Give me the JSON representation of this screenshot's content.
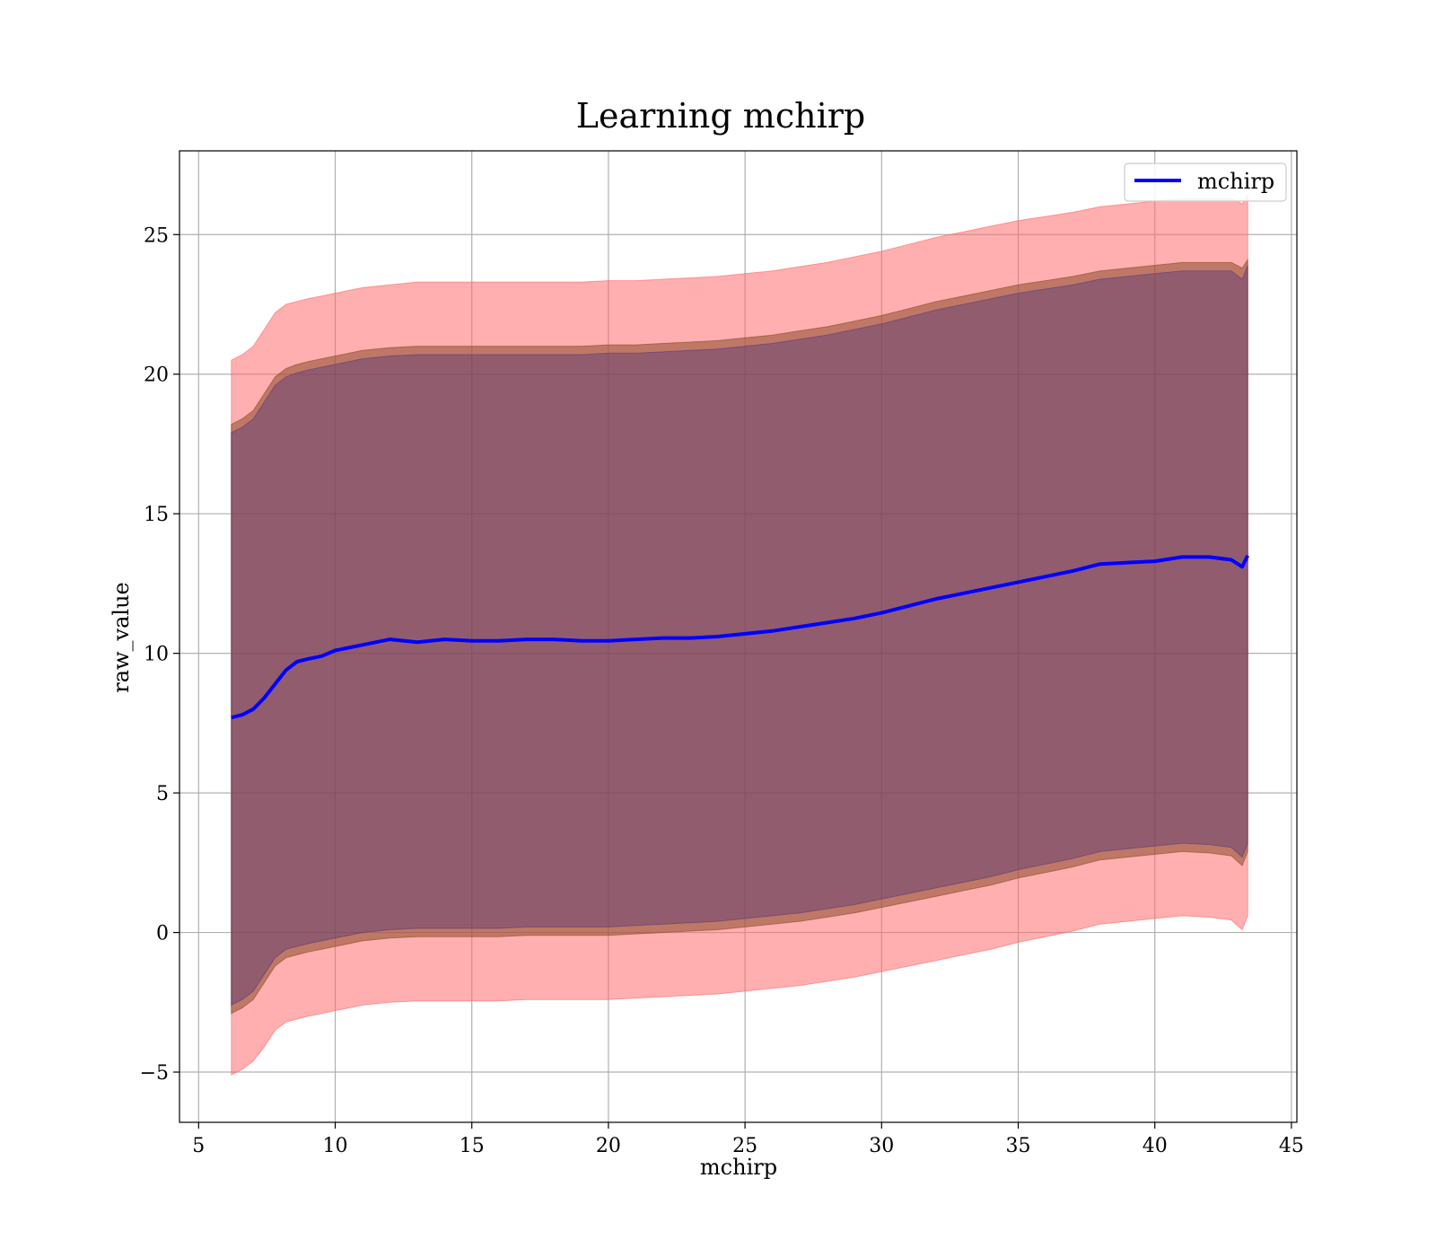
{
  "chart_data": {
    "type": "area",
    "title": "Learning mchirp",
    "xlabel": "mchirp",
    "ylabel": "raw_value",
    "xlim": [
      4.3,
      45.2
    ],
    "ylim": [
      -6.8,
      28.0
    ],
    "xticks": [
      5,
      10,
      15,
      20,
      25,
      30,
      35,
      40,
      45
    ],
    "xtick_labels": [
      "5",
      "10",
      "15",
      "20",
      "25",
      "30",
      "35",
      "40",
      "45"
    ],
    "yticks": [
      -5,
      0,
      5,
      10,
      15,
      20,
      25
    ],
    "ytick_labels": [
      "−5",
      "0",
      "5",
      "10",
      "15",
      "20",
      "25"
    ],
    "grid": true,
    "legend_position": "top-right",
    "colors": {
      "line": "#0000ff",
      "outer_band": "#ff6666",
      "middle_band": "#8a4a2a",
      "inner_band": "#5a3a7a"
    },
    "x": [
      6.2,
      6.6,
      7.0,
      7.4,
      7.8,
      8.2,
      8.6,
      9.0,
      9.5,
      10.0,
      11.0,
      12.0,
      13.0,
      14.0,
      15.0,
      16.0,
      17.0,
      18.0,
      19.0,
      20.0,
      21.0,
      22.0,
      23.0,
      24.0,
      25.0,
      26.0,
      27.0,
      28.0,
      29.0,
      30.0,
      31.0,
      32.0,
      33.0,
      34.0,
      35.0,
      36.0,
      37.0,
      38.0,
      39.0,
      40.0,
      41.0,
      42.0,
      42.8,
      43.2,
      43.4
    ],
    "series": [
      {
        "name": "mchirp",
        "kind": "line",
        "values": [
          7.7,
          7.8,
          8.0,
          8.4,
          8.9,
          9.4,
          9.7,
          9.8,
          9.9,
          10.1,
          10.3,
          10.5,
          10.4,
          10.5,
          10.45,
          10.45,
          10.5,
          10.5,
          10.45,
          10.45,
          10.5,
          10.55,
          10.55,
          10.6,
          10.7,
          10.8,
          10.95,
          11.1,
          11.25,
          11.45,
          11.7,
          11.95,
          12.15,
          12.35,
          12.55,
          12.75,
          12.95,
          13.2,
          13.25,
          13.3,
          13.45,
          13.45,
          13.35,
          13.1,
          13.5
        ]
      },
      {
        "kind": "band",
        "upper": [
          20.5,
          20.7,
          21.0,
          21.6,
          22.2,
          22.5,
          22.6,
          22.7,
          22.8,
          22.9,
          23.1,
          23.2,
          23.3,
          23.3,
          23.3,
          23.3,
          23.3,
          23.3,
          23.3,
          23.35,
          23.35,
          23.4,
          23.45,
          23.5,
          23.6,
          23.7,
          23.85,
          24.0,
          24.2,
          24.4,
          24.65,
          24.9,
          25.1,
          25.3,
          25.5,
          25.65,
          25.8,
          26.0,
          26.1,
          26.2,
          26.3,
          26.3,
          26.3,
          26.1,
          26.4
        ],
        "lower": [
          -5.1,
          -4.9,
          -4.6,
          -4.1,
          -3.5,
          -3.2,
          -3.1,
          -3.0,
          -2.9,
          -2.8,
          -2.6,
          -2.5,
          -2.45,
          -2.45,
          -2.45,
          -2.45,
          -2.4,
          -2.4,
          -2.4,
          -2.4,
          -2.35,
          -2.3,
          -2.25,
          -2.2,
          -2.1,
          -2.0,
          -1.9,
          -1.75,
          -1.6,
          -1.4,
          -1.2,
          -1.0,
          -0.8,
          -0.6,
          -0.35,
          -0.15,
          0.05,
          0.3,
          0.4,
          0.5,
          0.6,
          0.55,
          0.45,
          0.1,
          0.6
        ]
      },
      {
        "kind": "band",
        "upper": [
          18.2,
          18.4,
          18.7,
          19.3,
          19.9,
          20.2,
          20.35,
          20.45,
          20.55,
          20.65,
          20.85,
          20.95,
          21.0,
          21.0,
          21.0,
          21.0,
          21.0,
          21.0,
          21.0,
          21.05,
          21.05,
          21.1,
          21.15,
          21.2,
          21.3,
          21.4,
          21.55,
          21.7,
          21.9,
          22.1,
          22.35,
          22.6,
          22.8,
          23.0,
          23.2,
          23.35,
          23.5,
          23.7,
          23.8,
          23.9,
          24.0,
          24.0,
          24.0,
          23.8,
          24.1
        ],
        "lower": [
          -2.9,
          -2.7,
          -2.4,
          -1.8,
          -1.2,
          -0.9,
          -0.8,
          -0.7,
          -0.6,
          -0.5,
          -0.3,
          -0.2,
          -0.15,
          -0.15,
          -0.15,
          -0.15,
          -0.1,
          -0.1,
          -0.1,
          -0.1,
          -0.05,
          0.0,
          0.05,
          0.1,
          0.2,
          0.3,
          0.4,
          0.55,
          0.7,
          0.9,
          1.1,
          1.3,
          1.5,
          1.7,
          1.95,
          2.15,
          2.35,
          2.6,
          2.7,
          2.8,
          2.9,
          2.85,
          2.75,
          2.4,
          2.9
        ]
      },
      {
        "kind": "band",
        "upper": [
          17.9,
          18.1,
          18.4,
          19.0,
          19.6,
          19.9,
          20.05,
          20.15,
          20.25,
          20.35,
          20.55,
          20.65,
          20.7,
          20.7,
          20.7,
          20.7,
          20.7,
          20.7,
          20.7,
          20.75,
          20.75,
          20.8,
          20.85,
          20.9,
          21.0,
          21.1,
          21.25,
          21.4,
          21.6,
          21.8,
          22.05,
          22.3,
          22.5,
          22.7,
          22.9,
          23.05,
          23.2,
          23.4,
          23.5,
          23.6,
          23.7,
          23.7,
          23.7,
          23.4,
          23.9
        ],
        "lower": [
          -2.6,
          -2.4,
          -2.1,
          -1.5,
          -0.9,
          -0.6,
          -0.5,
          -0.4,
          -0.3,
          -0.2,
          0.0,
          0.1,
          0.15,
          0.15,
          0.15,
          0.15,
          0.2,
          0.2,
          0.2,
          0.2,
          0.25,
          0.3,
          0.35,
          0.4,
          0.5,
          0.6,
          0.7,
          0.85,
          1.0,
          1.2,
          1.4,
          1.6,
          1.8,
          2.0,
          2.25,
          2.45,
          2.65,
          2.9,
          3.0,
          3.1,
          3.2,
          3.15,
          3.05,
          2.7,
          3.2
        ]
      }
    ]
  }
}
